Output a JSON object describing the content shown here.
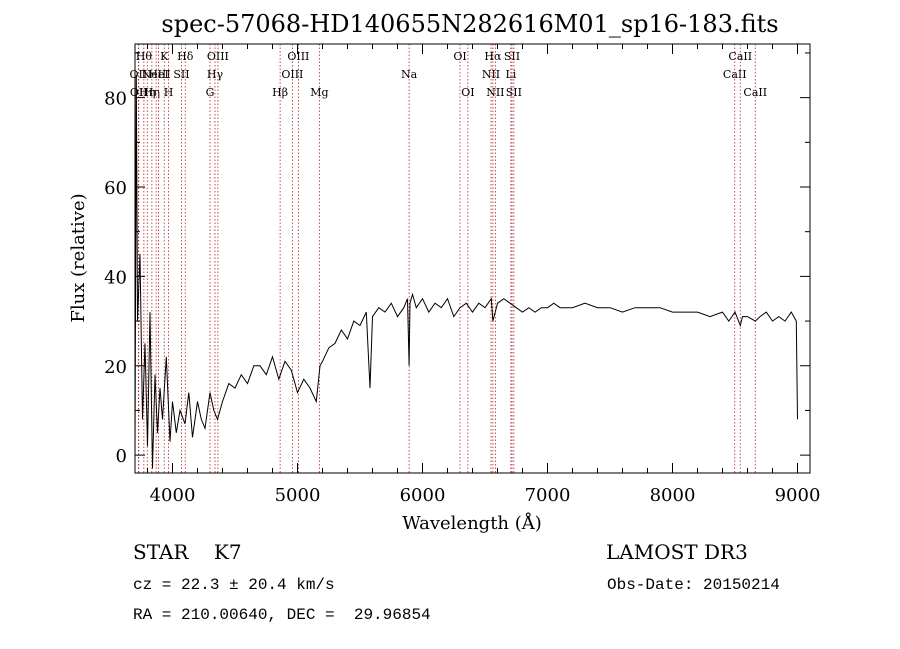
{
  "chart_data": {
    "type": "line",
    "title": "spec-57068-HD140655N282616M01_sp16-183.fits",
    "xlabel": "Wavelength (Å)",
    "ylabel": "Flux (relative)",
    "xlim": [
      3700,
      9100
    ],
    "ylim": [
      -4,
      92
    ],
    "x_ticks": [
      4000,
      5000,
      6000,
      7000,
      8000,
      9000
    ],
    "y_ticks": [
      0,
      20,
      40,
      60,
      80
    ],
    "grid": false,
    "series": [
      {
        "x": [
          3700,
          3710,
          3720,
          3740,
          3760,
          3780,
          3800,
          3820,
          3840,
          3860,
          3880,
          3900,
          3920,
          3950,
          3980,
          4000,
          4030,
          4060,
          4100,
          4130,
          4160,
          4200,
          4230,
          4260,
          4300,
          4330,
          4360,
          4400,
          4450,
          4500,
          4550,
          4600,
          4650,
          4700,
          4750,
          4800,
          4850,
          4900,
          4950,
          5000,
          5050,
          5100,
          5150,
          5180,
          5200,
          5250,
          5300,
          5350,
          5400,
          5450,
          5500,
          5550,
          5580,
          5600,
          5650,
          5700,
          5750,
          5800,
          5850,
          5880,
          5893,
          5900,
          5920,
          5950,
          6000,
          6050,
          6100,
          6150,
          6200,
          6250,
          6300,
          6350,
          6400,
          6450,
          6500,
          6550,
          6563,
          6600,
          6650,
          6700,
          6750,
          6800,
          6850,
          6900,
          6950,
          7000,
          7050,
          7100,
          7200,
          7300,
          7400,
          7500,
          7600,
          7700,
          7800,
          7900,
          8000,
          8100,
          8200,
          8300,
          8400,
          8450,
          8500,
          8542,
          8560,
          8600,
          8662,
          8700,
          8750,
          8800,
          8850,
          8900,
          8950,
          8990,
          9000
        ],
        "y": [
          0,
          85,
          30,
          45,
          8,
          25,
          2,
          32,
          -3,
          18,
          5,
          15,
          8,
          22,
          3,
          12,
          5,
          10,
          7,
          14,
          4,
          12,
          8,
          6,
          14,
          10,
          8,
          12,
          16,
          15,
          18,
          16,
          20,
          20,
          18,
          22,
          17,
          21,
          19,
          14,
          17,
          15,
          12,
          20,
          21,
          24,
          25,
          28,
          26,
          30,
          29,
          32,
          15,
          31,
          33,
          32,
          34,
          31,
          33,
          35,
          20,
          34,
          36,
          33,
          35,
          32,
          34,
          33,
          35,
          31,
          33,
          34,
          32,
          34,
          33,
          35,
          30,
          34,
          35,
          34,
          33,
          32,
          33,
          32,
          33,
          33,
          34,
          33,
          33,
          34,
          33,
          33,
          32,
          33,
          33,
          33,
          32,
          32,
          32,
          31,
          32,
          30,
          32,
          29,
          31,
          31,
          30,
          31,
          32,
          30,
          31,
          30,
          32,
          30,
          8
        ]
      }
    ],
    "spectral_lines": [
      {
        "x": 3727,
        "label": "OII",
        "row": 1
      },
      {
        "x": 3730,
        "label": "OII",
        "row": 2
      },
      {
        "x": 3771,
        "label": "Hθ",
        "row": 0
      },
      {
        "x": 3798,
        "label": "Hη",
        "row": 2
      },
      {
        "x": 3835,
        "label": "Hη",
        "row": 2
      },
      {
        "x": 3869,
        "label": "NeIII",
        "row": 1
      },
      {
        "x": 3889,
        "label": "HeI",
        "row": 1
      },
      {
        "x": 3934,
        "label": "K",
        "row": 0
      },
      {
        "x": 3968,
        "label": "H",
        "row": 2
      },
      {
        "x": 4072,
        "label": "SII",
        "row": 1
      },
      {
        "x": 4102,
        "label": "Hδ",
        "row": 0
      },
      {
        "x": 4300,
        "label": "G",
        "row": 2
      },
      {
        "x": 4340,
        "label": "Hγ",
        "row": 1
      },
      {
        "x": 4363,
        "label": "OIII",
        "row": 0
      },
      {
        "x": 4861,
        "label": "Hβ",
        "row": 2
      },
      {
        "x": 4959,
        "label": "OIII",
        "row": 1
      },
      {
        "x": 5007,
        "label": "OIII",
        "row": 0
      },
      {
        "x": 5175,
        "label": "Mg",
        "row": 2
      },
      {
        "x": 5893,
        "label": "Na",
        "row": 1
      },
      {
        "x": 6300,
        "label": "OI",
        "row": 0
      },
      {
        "x": 6363,
        "label": "OI",
        "row": 2
      },
      {
        "x": 6548,
        "label": "NII",
        "row": 1
      },
      {
        "x": 6563,
        "label": "Hα",
        "row": 0
      },
      {
        "x": 6583,
        "label": "NII",
        "row": 2
      },
      {
        "x": 6707,
        "label": "Li",
        "row": 1
      },
      {
        "x": 6716,
        "label": "SII",
        "row": 0
      },
      {
        "x": 6731,
        "label": "SII",
        "row": 2
      },
      {
        "x": 8498,
        "label": "CaII",
        "row": 1
      },
      {
        "x": 8542,
        "label": "CaII",
        "row": 0
      },
      {
        "x": 8662,
        "label": "CaII",
        "row": 2
      }
    ]
  },
  "info": {
    "class_line": "STAR    K7",
    "survey": "LAMOST DR3",
    "redshift": "cz = 22.3 ± 20.4 km/s",
    "obs_date": "Obs-Date: 20150214",
    "coords": "RA = 210.00640, DEC =  29.96854"
  },
  "colors": {
    "axes": "#000000",
    "spectrum": "#000000",
    "line_markers": "#b22222"
  }
}
